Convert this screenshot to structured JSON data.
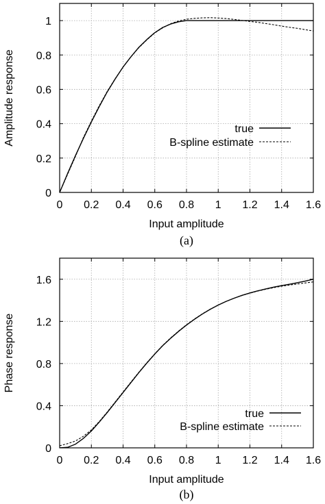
{
  "chart_data": [
    {
      "panel": "a",
      "type": "line",
      "caption": "(a)",
      "xlabel": "Input amplitude",
      "ylabel": "Amplitude response",
      "xlim": [
        0,
        1.6
      ],
      "ylim": [
        0,
        1.1
      ],
      "xticks": [
        0,
        0.2,
        0.4,
        0.6,
        0.8,
        1,
        1.2,
        1.4,
        1.6
      ],
      "xtick_labels": [
        "0",
        "0.2",
        "0.4",
        "0.6",
        "0.8",
        "1",
        "1.2",
        "1.4",
        "1.6"
      ],
      "yticks": [
        0,
        0.2,
        0.4,
        0.6,
        0.8,
        1
      ],
      "ytick_labels": [
        "0",
        "0.2",
        "0.4",
        "0.6",
        "0.8",
        "1"
      ],
      "grid": true,
      "legend_position": "middle-right",
      "series": [
        {
          "name": "true",
          "style": "solid",
          "x": [
            0,
            0.05,
            0.1,
            0.15,
            0.2,
            0.25,
            0.3,
            0.35,
            0.4,
            0.45,
            0.5,
            0.55,
            0.6,
            0.65,
            0.7,
            0.75,
            0.8,
            0.85,
            0.9,
            1.0,
            1.1,
            1.2,
            1.3,
            1.4,
            1.5,
            1.6
          ],
          "y": [
            0,
            0.11,
            0.215,
            0.315,
            0.41,
            0.5,
            0.585,
            0.66,
            0.73,
            0.79,
            0.845,
            0.89,
            0.93,
            0.96,
            0.98,
            0.993,
            1.0,
            1.0,
            1.0,
            1.0,
            1.0,
            1.0,
            1.0,
            1.0,
            1.0,
            1.0
          ]
        },
        {
          "name": "B-spline estimate",
          "style": "dashed",
          "x": [
            0,
            0.05,
            0.1,
            0.15,
            0.2,
            0.25,
            0.3,
            0.35,
            0.4,
            0.45,
            0.5,
            0.55,
            0.6,
            0.65,
            0.7,
            0.75,
            0.8,
            0.85,
            0.9,
            0.95,
            1.0,
            1.05,
            1.1,
            1.15,
            1.2,
            1.25,
            1.3,
            1.35,
            1.4,
            1.45,
            1.5,
            1.55,
            1.6
          ],
          "y": [
            0,
            0.105,
            0.21,
            0.32,
            0.415,
            0.505,
            0.588,
            0.662,
            0.73,
            0.79,
            0.843,
            0.888,
            0.928,
            0.958,
            0.982,
            0.998,
            1.008,
            1.013,
            1.016,
            1.017,
            1.015,
            1.012,
            1.007,
            1.001,
            0.995,
            0.99,
            0.983,
            0.976,
            0.968,
            0.961,
            0.955,
            0.947,
            0.94
          ]
        }
      ]
    },
    {
      "panel": "b",
      "type": "line",
      "caption": "(b)",
      "xlabel": "Input amplitude",
      "ylabel": "Phase response",
      "xlim": [
        0,
        1.6
      ],
      "ylim": [
        0,
        1.8
      ],
      "xticks": [
        0,
        0.2,
        0.4,
        0.6,
        0.8,
        1,
        1.2,
        1.4,
        1.6
      ],
      "xtick_labels": [
        "0",
        "0.2",
        "0.4",
        "0.6",
        "0.8",
        "1",
        "1.2",
        "1.4",
        "1.6"
      ],
      "yticks": [
        0,
        0.4,
        0.8,
        1.2,
        1.6
      ],
      "ytick_labels": [
        "0",
        "0.4",
        "0.8",
        "1.2",
        "1.6"
      ],
      "grid": true,
      "legend_position": "bottom-right",
      "series": [
        {
          "name": "true",
          "style": "solid",
          "x": [
            0,
            0.05,
            0.1,
            0.15,
            0.2,
            0.25,
            0.3,
            0.35,
            0.4,
            0.45,
            0.5,
            0.55,
            0.6,
            0.65,
            0.7,
            0.75,
            0.8,
            0.85,
            0.9,
            0.95,
            1.0,
            1.05,
            1.1,
            1.15,
            1.2,
            1.25,
            1.3,
            1.35,
            1.4,
            1.45,
            1.5,
            1.55,
            1.6
          ],
          "y": [
            0,
            0.005,
            0.035,
            0.09,
            0.16,
            0.245,
            0.335,
            0.43,
            0.525,
            0.62,
            0.715,
            0.805,
            0.89,
            0.97,
            1.04,
            1.105,
            1.165,
            1.22,
            1.27,
            1.315,
            1.355,
            1.39,
            1.42,
            1.447,
            1.47,
            1.49,
            1.508,
            1.525,
            1.54,
            1.553,
            1.567,
            1.583,
            1.6
          ]
        },
        {
          "name": "B-spline estimate",
          "style": "dashed",
          "x": [
            0,
            0.05,
            0.1,
            0.15,
            0.2,
            0.25,
            0.3,
            0.35,
            0.4,
            0.45,
            0.5,
            0.55,
            0.6,
            0.65,
            0.7,
            0.75,
            0.8,
            0.85,
            0.9,
            0.95,
            1.0,
            1.05,
            1.1,
            1.15,
            1.2,
            1.25,
            1.3,
            1.35,
            1.4,
            1.45,
            1.5,
            1.55,
            1.6
          ],
          "y": [
            0.02,
            0.04,
            0.065,
            0.11,
            0.17,
            0.25,
            0.34,
            0.435,
            0.53,
            0.625,
            0.718,
            0.808,
            0.893,
            0.972,
            1.043,
            1.108,
            1.168,
            1.222,
            1.272,
            1.316,
            1.355,
            1.39,
            1.42,
            1.446,
            1.468,
            1.488,
            1.505,
            1.52,
            1.534,
            1.545,
            1.555,
            1.565,
            1.575
          ]
        }
      ]
    }
  ]
}
